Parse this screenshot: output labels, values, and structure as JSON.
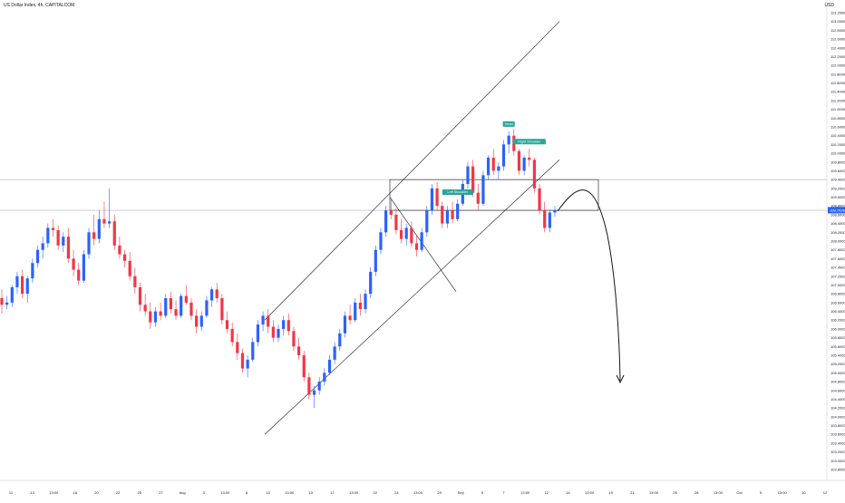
{
  "header": {
    "symbol_title": "US Dollar Index, 4h, CAPITALCOM",
    "currency": "USD"
  },
  "chart_data": {
    "type": "candlestick",
    "title": "US Dollar Index, 4h, CAPITALCOM",
    "ylim": [
      102.6,
      113.4
    ],
    "yticks": [
      "113.2000",
      "113.0000",
      "112.8000",
      "112.6000",
      "112.4000",
      "112.2000",
      "112.0000",
      "111.8000",
      "111.6000",
      "111.4000",
      "111.2000",
      "111.0000",
      "110.8000",
      "110.6000",
      "110.4000",
      "110.2000",
      "110.0000",
      "109.8000",
      "109.6000",
      "109.4000",
      "109.2000",
      "109.0000",
      "108.8000",
      "108.6000",
      "108.4000",
      "108.2000",
      "108.0000",
      "107.8000",
      "107.6000",
      "107.4000",
      "107.2000",
      "107.0000",
      "106.8000",
      "106.6000",
      "106.4000",
      "106.2000",
      "106.0000",
      "105.8000",
      "105.6000",
      "105.4000",
      "105.2000",
      "105.0000",
      "104.8000",
      "104.6000",
      "104.4000",
      "104.2000",
      "104.0000",
      "103.8000",
      "103.6000",
      "103.4000",
      "103.2000",
      "103.0000",
      "102.8000"
    ],
    "xticks": [
      "11",
      "13",
      "13:00",
      "18",
      "20",
      "22",
      "25",
      "27",
      "Aug",
      "3",
      "13:00",
      "8",
      "10",
      "13:00",
      "15",
      "17",
      "13:00",
      "22",
      "24",
      "13:00",
      "29",
      "Sep",
      "5",
      "7",
      "13:00",
      "12",
      "14",
      "13:00",
      "19",
      "21",
      "13:00",
      "26",
      "28",
      "13:00",
      "Oct",
      "5",
      "13:00",
      "10",
      "12"
    ],
    "last_price": "108.7026",
    "colors": {
      "up": "#2962ff",
      "down": "#f23645",
      "annotation": "#26a69a"
    },
    "series": [
      {
        "name": "",
        "ohlc": [
          [
            106.7,
            106.9,
            106.35,
            106.55
          ],
          [
            106.55,
            106.75,
            106.45,
            106.6
          ],
          [
            106.6,
            107.0,
            106.5,
            106.95
          ],
          [
            106.95,
            107.3,
            106.8,
            107.2
          ],
          [
            107.2,
            107.35,
            106.7,
            106.8
          ],
          [
            106.8,
            107.2,
            106.6,
            107.15
          ],
          [
            107.15,
            107.6,
            107.05,
            107.5
          ],
          [
            107.5,
            107.9,
            107.4,
            107.8
          ],
          [
            107.8,
            108.1,
            107.6,
            107.95
          ],
          [
            107.95,
            108.4,
            107.85,
            108.3
          ],
          [
            108.3,
            108.5,
            108.1,
            108.25
          ],
          [
            108.25,
            108.35,
            107.8,
            107.9
          ],
          [
            107.9,
            108.2,
            107.75,
            108.1
          ],
          [
            108.1,
            108.3,
            107.5,
            107.6
          ],
          [
            107.6,
            107.8,
            107.2,
            107.35
          ],
          [
            107.35,
            107.5,
            107.0,
            107.1
          ],
          [
            107.1,
            107.8,
            107.05,
            107.7
          ],
          [
            107.7,
            108.3,
            107.6,
            108.2
          ],
          [
            108.2,
            108.6,
            107.9,
            108.05
          ],
          [
            108.05,
            108.7,
            107.95,
            108.5
          ],
          [
            108.5,
            108.9,
            108.3,
            108.4
          ],
          [
            108.4,
            109.2,
            108.3,
            108.45
          ],
          [
            108.45,
            108.6,
            107.8,
            107.9
          ],
          [
            107.9,
            108.1,
            107.6,
            107.7
          ],
          [
            107.7,
            107.8,
            107.4,
            107.55
          ],
          [
            107.55,
            107.75,
            107.1,
            107.2
          ],
          [
            107.2,
            107.4,
            106.8,
            106.95
          ],
          [
            106.95,
            107.05,
            106.4,
            106.55
          ],
          [
            106.55,
            106.8,
            106.3,
            106.4
          ],
          [
            106.4,
            106.6,
            106.0,
            106.15
          ],
          [
            106.15,
            106.5,
            106.05,
            106.4
          ],
          [
            106.4,
            106.6,
            106.2,
            106.3
          ],
          [
            106.3,
            106.8,
            106.25,
            106.7
          ],
          [
            106.7,
            106.85,
            106.35,
            106.45
          ],
          [
            106.45,
            106.65,
            106.2,
            106.3
          ],
          [
            106.3,
            106.8,
            106.25,
            106.75
          ],
          [
            106.75,
            107.0,
            106.55,
            106.6
          ],
          [
            106.6,
            106.7,
            106.2,
            106.3
          ],
          [
            106.3,
            106.45,
            105.9,
            106.05
          ],
          [
            106.05,
            106.4,
            105.95,
            106.3
          ],
          [
            106.3,
            106.75,
            106.25,
            106.65
          ],
          [
            106.65,
            106.95,
            106.5,
            106.9
          ],
          [
            106.9,
            107.05,
            106.6,
            106.7
          ],
          [
            106.7,
            106.8,
            106.1,
            106.2
          ],
          [
            106.2,
            106.4,
            105.9,
            106.0
          ],
          [
            106.0,
            106.15,
            105.6,
            105.7
          ],
          [
            105.7,
            105.9,
            105.3,
            105.45
          ],
          [
            105.45,
            105.55,
            105.0,
            105.1
          ],
          [
            105.1,
            105.4,
            104.9,
            105.3
          ],
          [
            105.3,
            105.8,
            105.25,
            105.7
          ],
          [
            105.7,
            106.2,
            105.6,
            106.1
          ],
          [
            106.1,
            106.4,
            105.95,
            106.3
          ],
          [
            106.3,
            106.45,
            105.9,
            106.05
          ],
          [
            106.05,
            106.2,
            105.7,
            105.8
          ],
          [
            105.8,
            106.1,
            105.7,
            106.0
          ],
          [
            106.0,
            106.3,
            105.85,
            106.2
          ],
          [
            106.2,
            106.35,
            105.85,
            105.95
          ],
          [
            105.95,
            106.05,
            105.5,
            105.6
          ],
          [
            105.6,
            105.8,
            105.3,
            105.4
          ],
          [
            105.4,
            105.5,
            104.8,
            104.9
          ],
          [
            104.9,
            105.0,
            104.4,
            104.5
          ],
          [
            104.5,
            104.7,
            104.2,
            104.6
          ],
          [
            104.6,
            104.9,
            104.5,
            104.8
          ],
          [
            104.8,
            105.1,
            104.7,
            105.0
          ],
          [
            105.0,
            105.4,
            104.95,
            105.3
          ],
          [
            105.3,
            105.7,
            105.2,
            105.6
          ],
          [
            105.6,
            106.0,
            105.5,
            105.9
          ],
          [
            105.9,
            106.4,
            105.8,
            106.3
          ],
          [
            106.3,
            106.55,
            106.1,
            106.2
          ],
          [
            106.2,
            106.7,
            106.15,
            106.6
          ],
          [
            106.6,
            106.8,
            106.3,
            106.45
          ],
          [
            106.45,
            106.9,
            106.35,
            106.8
          ],
          [
            106.8,
            107.4,
            106.7,
            107.3
          ],
          [
            107.3,
            107.9,
            107.2,
            107.8
          ],
          [
            107.8,
            108.3,
            107.7,
            108.2
          ],
          [
            108.2,
            108.8,
            108.1,
            108.7
          ],
          [
            108.7,
            108.95,
            108.5,
            108.6
          ],
          [
            108.6,
            108.75,
            108.15,
            108.25
          ],
          [
            108.25,
            108.5,
            107.95,
            108.05
          ],
          [
            108.05,
            108.4,
            107.9,
            108.3
          ],
          [
            108.3,
            108.45,
            107.85,
            107.95
          ],
          [
            107.95,
            108.15,
            107.65,
            107.8
          ],
          [
            107.8,
            108.3,
            107.75,
            108.2
          ],
          [
            108.2,
            108.8,
            108.1,
            108.7
          ],
          [
            108.7,
            109.3,
            108.6,
            109.2
          ],
          [
            109.2,
            109.35,
            108.7,
            108.8
          ],
          [
            108.8,
            108.9,
            108.3,
            108.4
          ],
          [
            108.4,
            108.8,
            108.3,
            108.7
          ],
          [
            108.7,
            108.9,
            108.4,
            108.5
          ],
          [
            108.5,
            108.95,
            108.45,
            108.85
          ],
          [
            108.85,
            109.4,
            108.8,
            109.3
          ],
          [
            109.3,
            109.8,
            109.2,
            109.7
          ],
          [
            109.7,
            109.85,
            109.0,
            109.1
          ],
          [
            109.1,
            109.3,
            108.7,
            108.85
          ],
          [
            108.85,
            109.6,
            108.8,
            109.5
          ],
          [
            109.5,
            109.95,
            109.4,
            109.9
          ],
          [
            109.9,
            110.1,
            109.5,
            109.6
          ],
          [
            109.6,
            109.8,
            109.4,
            109.7
          ],
          [
            109.7,
            110.3,
            109.6,
            110.2
          ],
          [
            110.2,
            110.5,
            110.0,
            110.4
          ],
          [
            110.4,
            110.55,
            109.95,
            110.05
          ],
          [
            110.05,
            110.1,
            109.5,
            109.6
          ],
          [
            109.6,
            109.95,
            109.5,
            109.9
          ],
          [
            109.9,
            110.1,
            109.7,
            109.85
          ],
          [
            109.85,
            109.9,
            109.1,
            109.2
          ],
          [
            109.2,
            109.3,
            108.6,
            108.7
          ],
          [
            108.7,
            108.9,
            108.2,
            108.3
          ],
          [
            108.3,
            108.7,
            108.2,
            108.65
          ],
          [
            108.65,
            108.8,
            108.55,
            108.7
          ]
        ]
      }
    ],
    "annotations": [
      {
        "text": "Left Shoulder",
        "date_index": 89
      },
      {
        "text": "Head",
        "date_index": 99
      },
      {
        "text": "Right Shoulder",
        "date_index": 103
      }
    ],
    "grid": false,
    "legend": "none"
  }
}
